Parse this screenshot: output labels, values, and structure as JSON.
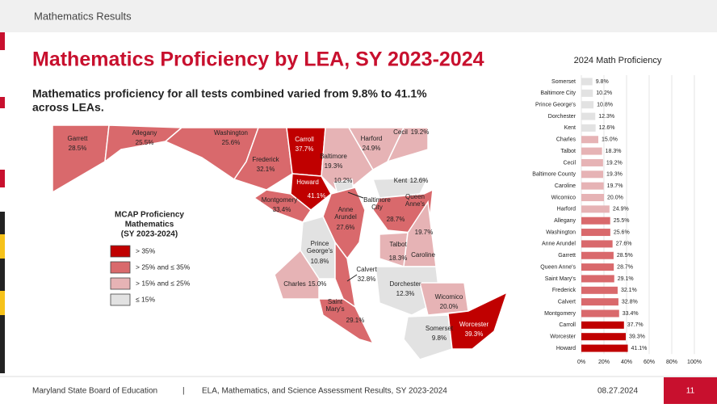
{
  "header": "Mathematics Results",
  "title": "Mathematics Proficiency by LEA, SY 2023-2024",
  "subtitle": [
    "Mathematics proficiency for all tests combined varied from 9.8% to 41.1%",
    "across LEAs."
  ],
  "legend": {
    "title": [
      "MCAP Proficiency",
      "Mathematics",
      "(SY 2023-2024)"
    ],
    "items": [
      {
        "label": "> 35%",
        "color": "#c00000"
      },
      {
        "label": "> 25% and ≤ 35%",
        "color": "#d9696c"
      },
      {
        "label": "> 15% and ≤ 25%",
        "color": "#e6b3b5"
      },
      {
        "label": "≤ 15%",
        "color": "#e2e2e2"
      }
    ]
  },
  "map": {
    "regions": [
      {
        "name": "Garrett",
        "value": 28.5,
        "value_label": "28.5%",
        "color": "#d9696c"
      },
      {
        "name": "Allegany",
        "value": 25.5,
        "value_label": "25.5%",
        "color": "#d9696c"
      },
      {
        "name": "Washington",
        "value": 25.6,
        "value_label": "25.6%",
        "color": "#d9696c"
      },
      {
        "name": "Frederick",
        "value": 32.1,
        "value_label": "32.1%",
        "color": "#d9696c"
      },
      {
        "name": "Carroll",
        "value": 37.7,
        "value_label": "37.7%",
        "color": "#c00000"
      },
      {
        "name": "Baltimore",
        "value": 19.3,
        "value_label": "19.3%",
        "color": "#e6b3b5"
      },
      {
        "name": "Harford",
        "value": 24.9,
        "value_label": "24.9%",
        "color": "#e6b3b5"
      },
      {
        "name": "Cecil",
        "value": 19.2,
        "value_label": "19.2%",
        "color": "#e6b3b5"
      },
      {
        "name": "Howard",
        "value": 41.1,
        "value_label": "41.1%",
        "color": "#c00000"
      },
      {
        "name": "Montgomery",
        "value": 33.4,
        "value_label": "33.4%",
        "color": "#d9696c"
      },
      {
        "name": "Baltimore City",
        "value": 10.2,
        "value_label": "10.2%",
        "color": "#e2e2e2"
      },
      {
        "name": "Anne Arundel",
        "value": 27.6,
        "value_label": "27.6%",
        "color": "#d9696c"
      },
      {
        "name": "Prince George's",
        "value": 10.8,
        "value_label": "10.8%",
        "color": "#e2e2e2"
      },
      {
        "name": "Charles",
        "value": 15.0,
        "value_label": "15.0%",
        "color": "#e6b3b5"
      },
      {
        "name": "Calvert",
        "value": 32.8,
        "value_label": "32.8%",
        "color": "#d9696c"
      },
      {
        "name": "Saint Mary's",
        "value": 29.1,
        "value_label": "29.1%",
        "color": "#d9696c"
      },
      {
        "name": "Kent",
        "value": 12.6,
        "value_label": "12.6%",
        "color": "#e2e2e2"
      },
      {
        "name": "Queen Anne's",
        "value": 28.7,
        "value_label": "28.7%",
        "color": "#d9696c"
      },
      {
        "name": "Talbot",
        "value": 18.3,
        "value_label": "18.3%",
        "color": "#e6b3b5"
      },
      {
        "name": "Caroline",
        "value": 19.7,
        "value_label": "19.7%",
        "color": "#e6b3b5"
      },
      {
        "name": "Dorchester",
        "value": 12.3,
        "value_label": "12.3%",
        "color": "#e2e2e2"
      },
      {
        "name": "Wicomico",
        "value": 20.0,
        "value_label": "20.0%",
        "color": "#e6b3b5"
      },
      {
        "name": "Somerset",
        "value": 9.8,
        "value_label": "9.8%",
        "color": "#e2e2e2"
      },
      {
        "name": "Worcester",
        "value": 39.3,
        "value_label": "39.3%",
        "color": "#c00000"
      }
    ]
  },
  "chart_data": {
    "type": "bar",
    "orientation": "horizontal",
    "title": "2024 Math Proficiency",
    "categories": [
      "Somerset",
      "Baltimore City",
      "Prince George's",
      "Dorchester",
      "Kent",
      "Charles",
      "Talbot",
      "Cecil",
      "Baltimore County",
      "Caroline",
      "Wicomico",
      "Harford",
      "Allegany",
      "Washington",
      "Anne Arundel",
      "Garrett",
      "Queen Anne's",
      "Saint Mary's",
      "Frederick",
      "Calvert",
      "Montgomery",
      "Carroll",
      "Worcester",
      "Howard"
    ],
    "values": [
      9.8,
      10.2,
      10.8,
      12.3,
      12.6,
      15.0,
      18.3,
      19.2,
      19.3,
      19.7,
      20.0,
      24.9,
      25.5,
      25.6,
      27.6,
      28.5,
      28.7,
      29.1,
      32.1,
      32.8,
      33.4,
      37.7,
      39.3,
      41.1
    ],
    "value_labels": [
      "9.8%",
      "10.2%",
      "10.8%",
      "12.3%",
      "12.6%",
      "15.0%",
      "18.3%",
      "19.2%",
      "19.3%",
      "19.7%",
      "20.0%",
      "24.9%",
      "25.5%",
      "25.6%",
      "27.6%",
      "28.5%",
      "28.7%",
      "29.1%",
      "32.1%",
      "32.8%",
      "33.4%",
      "37.7%",
      "39.3%",
      "41.1%"
    ],
    "colors": [
      "#e2e2e2",
      "#e2e2e2",
      "#e2e2e2",
      "#e2e2e2",
      "#e2e2e2",
      "#e6b3b5",
      "#e6b3b5",
      "#e6b3b5",
      "#e6b3b5",
      "#e6b3b5",
      "#e6b3b5",
      "#e6b3b5",
      "#d9696c",
      "#d9696c",
      "#d9696c",
      "#d9696c",
      "#d9696c",
      "#d9696c",
      "#d9696c",
      "#d9696c",
      "#d9696c",
      "#c00000",
      "#c00000",
      "#c00000"
    ],
    "xlim": [
      0,
      100
    ],
    "xticks": [
      {
        "value": 0,
        "label": "0%"
      },
      {
        "value": 20,
        "label": "20%"
      },
      {
        "value": 40,
        "label": "40%"
      },
      {
        "value": 60,
        "label": "60%"
      },
      {
        "value": 80,
        "label": "80%"
      },
      {
        "value": 100,
        "label": "100%"
      }
    ],
    "grid": true
  },
  "footer": {
    "org": "Maryland State Board of Education",
    "separator": "|",
    "report": "ELA, Mathematics, and Science Assessment Results, SY 2023-2024",
    "date": "08.27.2024",
    "page": "11"
  }
}
